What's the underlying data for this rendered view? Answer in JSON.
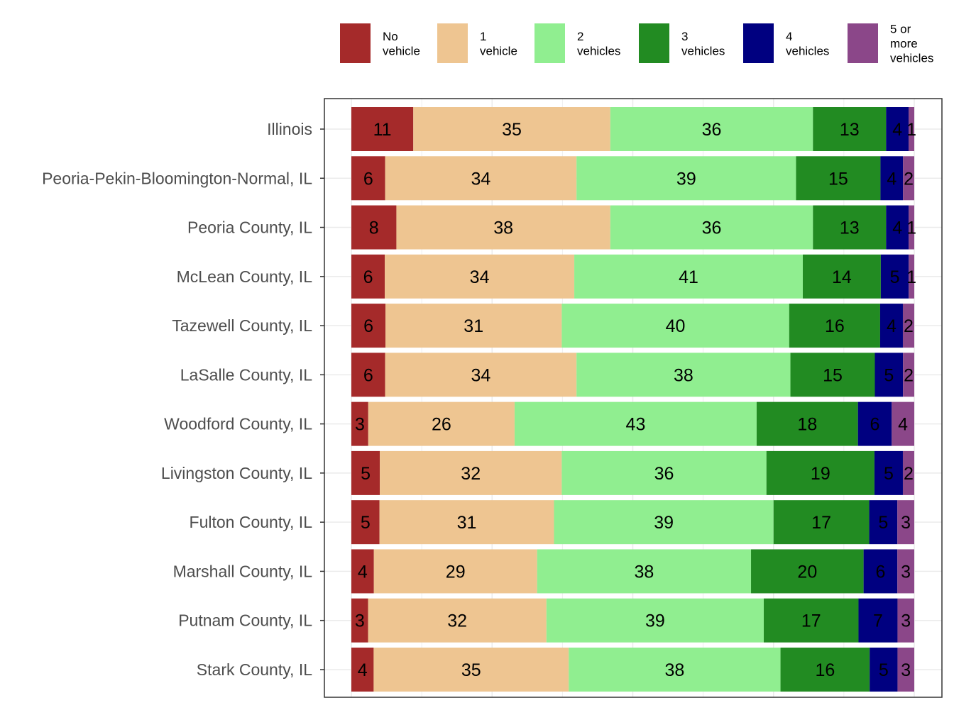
{
  "chart_data": {
    "type": "stacked-bar-horizontal",
    "title": "",
    "xlabel": "",
    "ylabel": "",
    "xlim": [
      0,
      100
    ],
    "grid": true,
    "legend_position": "top",
    "categories": [
      "Illinois",
      "Peoria-Pekin-Bloomington-Normal, IL",
      "Peoria County, IL",
      "McLean County, IL",
      "Tazewell County, IL",
      "LaSalle County, IL",
      "Woodford County, IL",
      "Livingston County, IL",
      "Fulton County, IL",
      "Marshall County, IL",
      "Putnam County, IL",
      "Stark County, IL"
    ],
    "series": [
      {
        "name": "No vehicle",
        "legend_lines": [
          "No",
          "vehicle"
        ],
        "color": "#A52A2A",
        "values": [
          11,
          6,
          8,
          6,
          6,
          6,
          3,
          5,
          5,
          4,
          3,
          4
        ]
      },
      {
        "name": "1 vehicle",
        "legend_lines": [
          "1",
          "vehicle"
        ],
        "color": "#EEC591",
        "values": [
          35,
          34,
          38,
          34,
          31,
          34,
          26,
          32,
          31,
          29,
          32,
          35
        ]
      },
      {
        "name": "2 vehicles",
        "legend_lines": [
          "2",
          "vehicles"
        ],
        "color": "#90EE90",
        "values": [
          36,
          39,
          36,
          41,
          40,
          38,
          43,
          36,
          39,
          38,
          39,
          38
        ]
      },
      {
        "name": "3 vehicles",
        "legend_lines": [
          "3",
          "vehicles"
        ],
        "color": "#228B22",
        "values": [
          13,
          15,
          13,
          14,
          16,
          15,
          18,
          19,
          17,
          20,
          17,
          16
        ]
      },
      {
        "name": "4 vehicles",
        "legend_lines": [
          "4",
          "vehicles"
        ],
        "color": "#000080",
        "values": [
          4,
          4,
          4,
          5,
          4,
          5,
          6,
          5,
          5,
          6,
          7,
          5
        ]
      },
      {
        "name": "5 or more vehicles",
        "legend_lines": [
          "5 or",
          "more",
          "vehicles"
        ],
        "color": "#8B4789",
        "values": [
          1,
          2,
          1,
          1,
          2,
          2,
          4,
          2,
          3,
          3,
          3,
          3
        ]
      }
    ]
  }
}
